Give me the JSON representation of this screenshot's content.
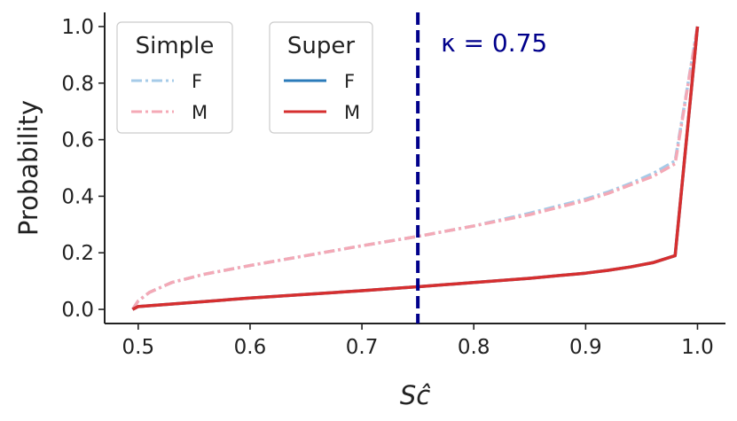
{
  "chart_data": {
    "type": "line",
    "xlabel": "Sĉ",
    "ylabel": "Probability",
    "xlim": [
      0.47,
      1.025
    ],
    "ylim": [
      -0.05,
      1.05
    ],
    "xticks": [
      0.5,
      0.6,
      0.7,
      0.8,
      0.9,
      1.0
    ],
    "xtick_labels": [
      "0.5",
      "0.6",
      "0.7",
      "0.8",
      "0.9",
      "1.0"
    ],
    "yticks": [
      0.0,
      0.2,
      0.4,
      0.6,
      0.8,
      1.0
    ],
    "ytick_labels": [
      "0.0",
      "0.2",
      "0.4",
      "0.6",
      "0.8",
      "1.0"
    ],
    "grid": false,
    "vline": {
      "x": 0.75,
      "label": "κ = 0.75",
      "color": "#00008b"
    },
    "legends": [
      {
        "title": "Simple",
        "placement": "top-left",
        "entries": [
          {
            "label": "F",
            "color": "#a6cbe8",
            "style": "dashdot"
          },
          {
            "label": "M",
            "color": "#f4a9b6",
            "style": "dashdot"
          }
        ]
      },
      {
        "title": "Super",
        "placement": "top-left",
        "entries": [
          {
            "label": "F",
            "color": "#2b7bba",
            "style": "solid"
          },
          {
            "label": "M",
            "color": "#d62f2f",
            "style": "solid"
          }
        ]
      }
    ],
    "series": [
      {
        "group": "Simple",
        "name": "F",
        "color": "#a6cbe8",
        "style": "dashdot",
        "x": [
          0.495,
          0.5,
          0.51,
          0.53,
          0.56,
          0.6,
          0.65,
          0.7,
          0.75,
          0.8,
          0.85,
          0.9,
          0.92,
          0.94,
          0.96,
          0.98,
          1.0
        ],
        "y": [
          0.0,
          0.03,
          0.06,
          0.095,
          0.125,
          0.155,
          0.19,
          0.225,
          0.258,
          0.295,
          0.34,
          0.39,
          0.415,
          0.445,
          0.48,
          0.525,
          1.0
        ]
      },
      {
        "group": "Simple",
        "name": "M",
        "color": "#f4a9b6",
        "style": "dashdot",
        "x": [
          0.495,
          0.5,
          0.51,
          0.53,
          0.56,
          0.6,
          0.65,
          0.7,
          0.75,
          0.8,
          0.85,
          0.9,
          0.92,
          0.94,
          0.96,
          0.98,
          1.0
        ],
        "y": [
          0.0,
          0.03,
          0.06,
          0.095,
          0.125,
          0.155,
          0.19,
          0.225,
          0.258,
          0.295,
          0.335,
          0.385,
          0.41,
          0.44,
          0.47,
          0.515,
          1.0
        ]
      },
      {
        "group": "Super",
        "name": "F",
        "color": "#2b7bba",
        "style": "solid",
        "x": [
          0.495,
          0.5,
          0.55,
          0.6,
          0.65,
          0.7,
          0.75,
          0.8,
          0.85,
          0.9,
          0.92,
          0.94,
          0.96,
          0.98,
          1.0
        ],
        "y": [
          0.0,
          0.01,
          0.025,
          0.04,
          0.053,
          0.066,
          0.08,
          0.095,
          0.11,
          0.128,
          0.138,
          0.15,
          0.165,
          0.19,
          1.0
        ]
      },
      {
        "group": "Super",
        "name": "M",
        "color": "#d62f2f",
        "style": "solid",
        "x": [
          0.495,
          0.5,
          0.55,
          0.6,
          0.65,
          0.7,
          0.75,
          0.8,
          0.85,
          0.9,
          0.92,
          0.94,
          0.96,
          0.98,
          1.0
        ],
        "y": [
          0.0,
          0.01,
          0.025,
          0.04,
          0.053,
          0.066,
          0.08,
          0.095,
          0.11,
          0.128,
          0.138,
          0.15,
          0.165,
          0.19,
          1.0
        ]
      }
    ]
  }
}
